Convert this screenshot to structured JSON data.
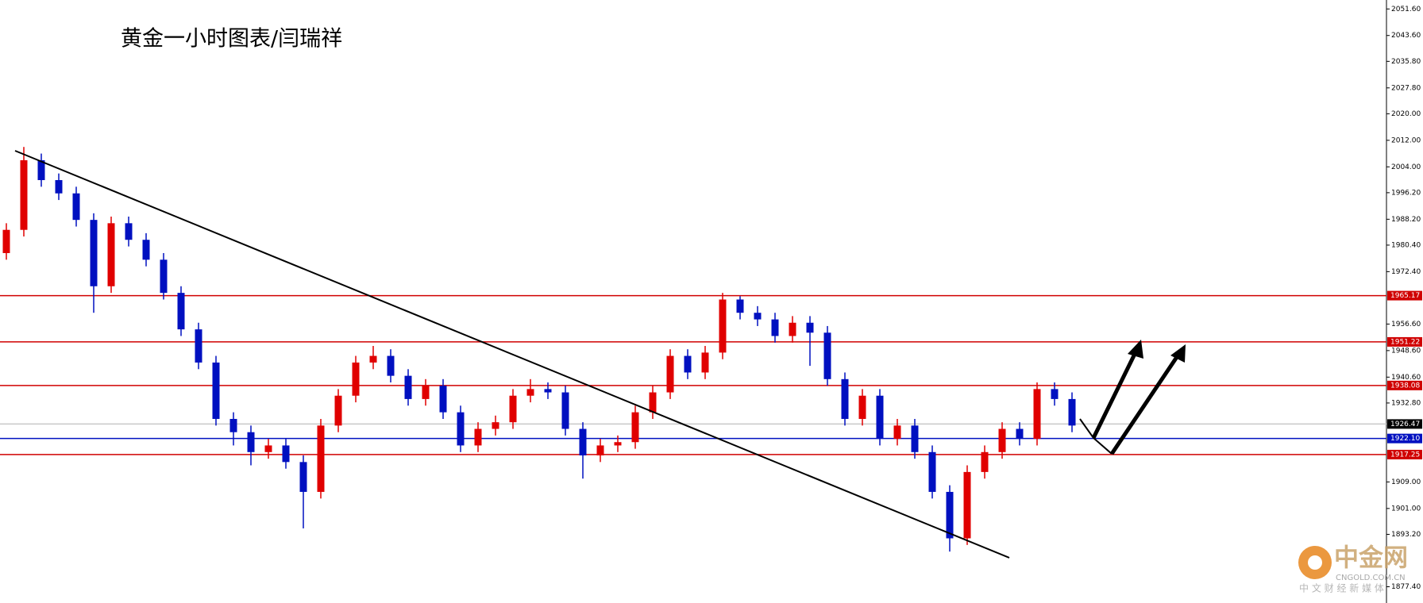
{
  "chart_data": {
    "type": "candlestick",
    "title": "黄金一小时图表/闫瑞祥",
    "up_color": "#e00000",
    "down_color": "#0010c0",
    "open": [
      1978,
      1985,
      2006,
      2000,
      1996,
      1988,
      1968,
      1987,
      1982,
      1976,
      1966,
      1955,
      1945,
      1928,
      1924,
      1918,
      1920,
      1915,
      1906,
      1926,
      1935,
      1945,
      1947,
      1941,
      1934,
      1938,
      1930,
      1920,
      1925,
      1927,
      1935,
      1937,
      1936,
      1925,
      1917,
      1920,
      1921,
      1930,
      1936,
      1947,
      1942,
      1948,
      1964,
      1960,
      1958,
      1953,
      1957,
      1954,
      1940,
      1928,
      1935,
      1922,
      1926,
      1918,
      1906,
      1892,
      1912,
      1918,
      1925,
      1922,
      1937,
      1934
    ],
    "high": [
      1987,
      2010,
      2008,
      2002,
      1998,
      1990,
      1989,
      1989,
      1984,
      1978,
      1968,
      1957,
      1947,
      1930,
      1926,
      1922,
      1922,
      1917,
      1928,
      1937,
      1947,
      1950,
      1949,
      1943,
      1940,
      1940,
      1932,
      1927,
      1929,
      1937,
      1940,
      1939,
      1938,
      1927,
      1922,
      1923,
      1932,
      1938,
      1949,
      1949,
      1950,
      1966,
      1965,
      1962,
      1960,
      1959,
      1959,
      1956,
      1942,
      1937,
      1937,
      1928,
      1928,
      1920,
      1908,
      1914,
      1920,
      1927,
      1927,
      1939,
      1939,
      1936
    ],
    "low": [
      1976,
      1983,
      1998,
      1994,
      1986,
      1960,
      1966,
      1980,
      1974,
      1964,
      1953,
      1943,
      1926,
      1920,
      1914,
      1916,
      1913,
      1895,
      1904,
      1924,
      1933,
      1943,
      1939,
      1932,
      1932,
      1928,
      1918,
      1918,
      1923,
      1925,
      1933,
      1934,
      1923,
      1910,
      1915,
      1918,
      1919,
      1928,
      1934,
      1940,
      1940,
      1946,
      1958,
      1956,
      1951,
      1951,
      1944,
      1938,
      1926,
      1926,
      1920,
      1920,
      1916,
      1904,
      1888,
      1890,
      1910,
      1916,
      1920,
      1920,
      1932,
      1924
    ],
    "close": [
      1985,
      2006,
      2000,
      1996,
      1988,
      1968,
      1987,
      1982,
      1976,
      1966,
      1955,
      1945,
      1928,
      1924,
      1918,
      1920,
      1915,
      1906,
      1926,
      1935,
      1945,
      1947,
      1941,
      1934,
      1938,
      1930,
      1920,
      1925,
      1927,
      1935,
      1937,
      1936,
      1925,
      1917,
      1920,
      1921,
      1930,
      1936,
      1947,
      1942,
      1948,
      1964,
      1960,
      1958,
      1953,
      1957,
      1954,
      1940,
      1928,
      1935,
      1922,
      1926,
      1918,
      1906,
      1892,
      1912,
      1918,
      1925,
      1922,
      1937,
      1934,
      1926
    ],
    "ylim": [
      1872.5,
      2054.3
    ],
    "yticks": [
      {
        "value": 2051.6,
        "label": "2051.60"
      },
      {
        "value": 2043.6,
        "label": "2043.60"
      },
      {
        "value": 2035.8,
        "label": "2035.80"
      },
      {
        "value": 2027.8,
        "label": "2027.80"
      },
      {
        "value": 2020,
        "label": "2020.00"
      },
      {
        "value": 2012,
        "label": "2012.00"
      },
      {
        "value": 2004,
        "label": "2004.00"
      },
      {
        "value": 1996.2,
        "label": "1996.20"
      },
      {
        "value": 1988.2,
        "label": "1988.20"
      },
      {
        "value": 1980.4,
        "label": "1980.40"
      },
      {
        "value": 1972.4,
        "label": "1972.40"
      },
      {
        "value": 1956.6,
        "label": "1956.60"
      },
      {
        "value": 1948.6,
        "label": "1948.60"
      },
      {
        "value": 1940.6,
        "label": "1940.60"
      },
      {
        "value": 1932.8,
        "label": "1932.80"
      },
      {
        "value": 1909,
        "label": "1909.00"
      },
      {
        "value": 1901,
        "label": "1901.00"
      },
      {
        "value": 1893.2,
        "label": "1893.20"
      },
      {
        "value": 1877.4,
        "label": "1877.40"
      }
    ],
    "levels": [
      {
        "value": 1965.17,
        "label": "1965.17",
        "color": "#d00000"
      },
      {
        "value": 1951.22,
        "label": "1951.22",
        "color": "#d00000"
      },
      {
        "value": 1938.08,
        "label": "1938.08",
        "color": "#d00000"
      },
      {
        "value": 1926.47,
        "label": "1926.47",
        "color": "#000000",
        "line_color": "#c8c8c8"
      },
      {
        "value": 1922.1,
        "label": "1922.10",
        "color": "#0010c0"
      },
      {
        "value": 1917.25,
        "label": "1917.25",
        "color": "#d00000"
      }
    ],
    "watermark": {
      "name": "中金网",
      "url": "CNGOLD.COM.CN",
      "slogan": "中 文 财 经 新 媒 体"
    }
  }
}
